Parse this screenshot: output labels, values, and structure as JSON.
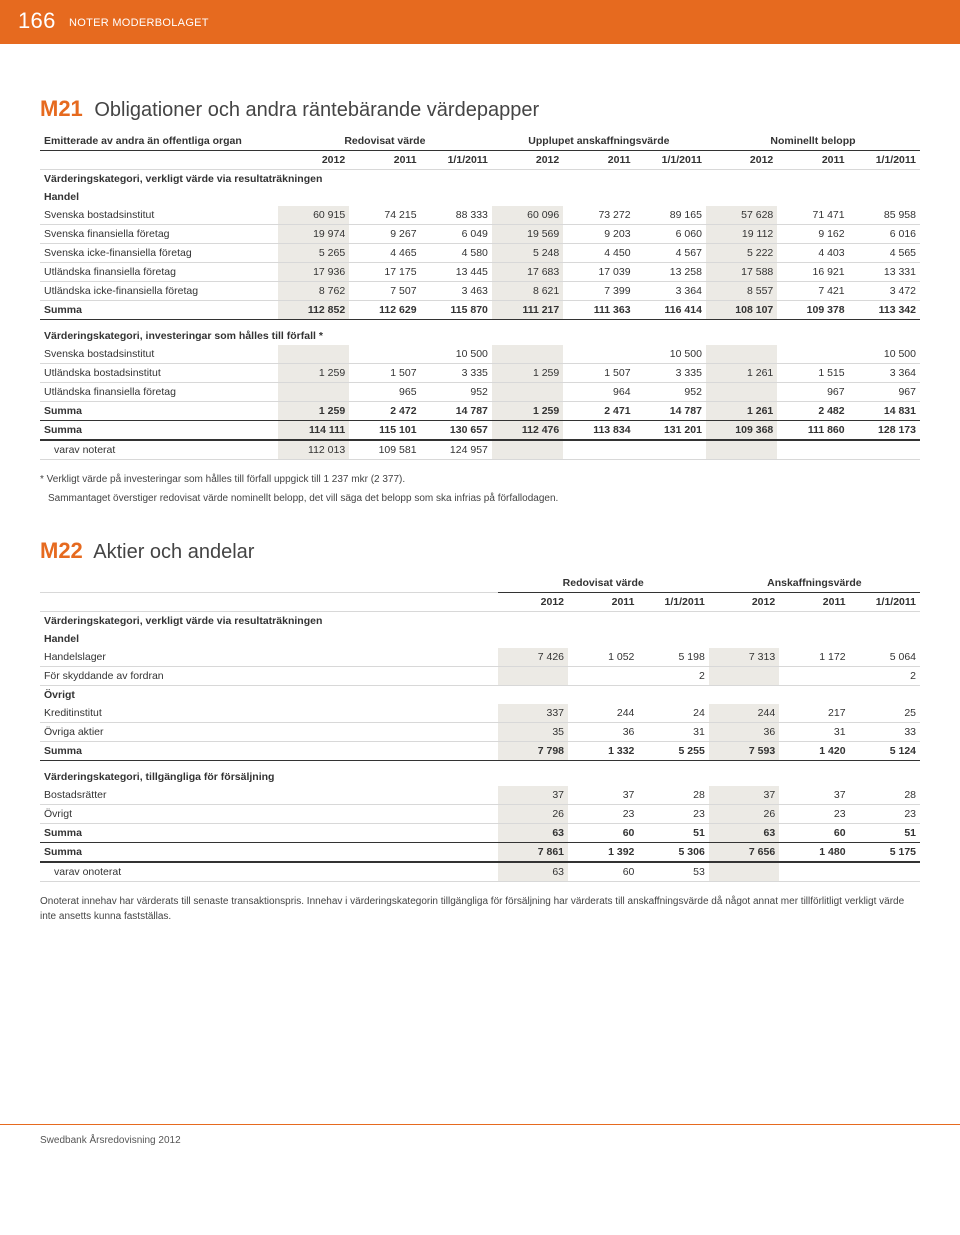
{
  "header": {
    "page_num": "166",
    "section": "NOTER MODERBOLAGET"
  },
  "m21": {
    "code": "M21",
    "title": "Obligationer och andra räntebärande värdepapper",
    "top_label": "Emitterade av andra än offentliga organ",
    "col_groups": [
      "Redovisat värde",
      "Upplupet anskaffningsvärde",
      "Nominellt belopp"
    ],
    "years": [
      "2012",
      "2011",
      "1/1/2011",
      "2012",
      "2011",
      "1/1/2011",
      "2012",
      "2011",
      "1/1/2011"
    ],
    "grp1_title": "Värderingskategori, verkligt värde via resultat­räkningen",
    "grp1_sub": "Handel",
    "rows1": [
      {
        "l": "Svenska bostadsinstitut",
        "v": [
          "60 915",
          "74 215",
          "88 333",
          "60 096",
          "73 272",
          "89 165",
          "57 628",
          "71 471",
          "85 958"
        ]
      },
      {
        "l": "Svenska finansiella företag",
        "v": [
          "19 974",
          "9 267",
          "6 049",
          "19 569",
          "9 203",
          "6 060",
          "19 112",
          "9 162",
          "6 016"
        ]
      },
      {
        "l": "Svenska icke-finansiella företag",
        "v": [
          "5 265",
          "4 465",
          "4 580",
          "5 248",
          "4 450",
          "4 567",
          "5 222",
          "4 403",
          "4 565"
        ]
      },
      {
        "l": "Utländska finansiella företag",
        "v": [
          "17 936",
          "17 175",
          "13 445",
          "17 683",
          "17 039",
          "13 258",
          "17 588",
          "16 921",
          "13 331"
        ]
      },
      {
        "l": "Utländska icke-finansiella företag",
        "v": [
          "8 762",
          "7 507",
          "3 463",
          "8 621",
          "7 399",
          "3 364",
          "8 557",
          "7 421",
          "3 472"
        ]
      }
    ],
    "sum1": {
      "l": "Summa",
      "v": [
        "112 852",
        "112 629",
        "115 870",
        "111 217",
        "111 363",
        "116 414",
        "108 107",
        "109 378",
        "113 342"
      ]
    },
    "grp2_title": "Värderingskategori, investeringar som hålles till förfall *",
    "rows2": [
      {
        "l": "Svenska bostadsinstitut",
        "v": [
          "",
          "",
          "10 500",
          "",
          "",
          "10 500",
          "",
          "",
          "10 500"
        ]
      },
      {
        "l": "Utländska bostadsinstitut",
        "v": [
          "1 259",
          "1 507",
          "3 335",
          "1 259",
          "1 507",
          "3 335",
          "1 261",
          "1 515",
          "3 364"
        ]
      },
      {
        "l": "Utländska finansiella företag",
        "v": [
          "",
          "965",
          "952",
          "",
          "964",
          "952",
          "",
          "967",
          "967"
        ]
      }
    ],
    "sum2": {
      "l": "Summa",
      "v": [
        "1 259",
        "2 472",
        "14 787",
        "1 259",
        "2 471",
        "14 787",
        "1 261",
        "2 482",
        "14 831"
      ]
    },
    "sum3": {
      "l": "Summa",
      "v": [
        "114 111",
        "115 101",
        "130 657",
        "112 476",
        "113 834",
        "131 201",
        "109 368",
        "111 860",
        "128 173"
      ]
    },
    "varav": {
      "l": "varav noterat",
      "v": [
        "112 013",
        "109 581",
        "124 957",
        "",
        "",
        "",
        "",
        "",
        ""
      ]
    },
    "note1": "* Verkligt värde på investeringar som hålles till förfall uppgick till 1 237 mkr (2 377).",
    "note2": "Sammantaget överstiger redovisat värde nominellt belopp, det vill säga det belopp som ska infrias på förfallodagen."
  },
  "m22": {
    "code": "M22",
    "title": "Aktier och andelar",
    "col_groups": [
      "Redovisat värde",
      "Anskaffningsvärde"
    ],
    "years": [
      "2012",
      "2011",
      "1/1/2011",
      "2012",
      "2011",
      "1/1/2011"
    ],
    "grp1_title": "Värderingskategori, verkligt värde via resultaträkningen",
    "grp1_sub": "Handel",
    "rows1": [
      {
        "l": "Handelslager",
        "v": [
          "7 426",
          "1 052",
          "5 198",
          "7 313",
          "1 172",
          "5 064"
        ]
      },
      {
        "l": "För skyddande av fordran",
        "v": [
          "",
          "",
          "2",
          "",
          "",
          "2"
        ]
      }
    ],
    "grp1b": "Övrigt",
    "rows1b": [
      {
        "l": "Kreditinstitut",
        "v": [
          "337",
          "244",
          "24",
          "244",
          "217",
          "25"
        ]
      },
      {
        "l": "Övriga aktier",
        "v": [
          "35",
          "36",
          "31",
          "36",
          "31",
          "33"
        ]
      }
    ],
    "sum1": {
      "l": "Summa",
      "v": [
        "7 798",
        "1 332",
        "5 255",
        "7 593",
        "1 420",
        "5 124"
      ]
    },
    "grp2_title": "Värderingskategori, tillgängliga för försäljning",
    "rows2": [
      {
        "l": "Bostadsrätter",
        "v": [
          "37",
          "37",
          "28",
          "37",
          "37",
          "28"
        ]
      },
      {
        "l": "Övrigt",
        "v": [
          "26",
          "23",
          "23",
          "26",
          "23",
          "23"
        ]
      }
    ],
    "sum2": {
      "l": "Summa",
      "v": [
        "63",
        "60",
        "51",
        "63",
        "60",
        "51"
      ]
    },
    "sum3": {
      "l": "Summa",
      "v": [
        "7 861",
        "1 392",
        "5 306",
        "7 656",
        "1 480",
        "5 175"
      ]
    },
    "varav": {
      "l": "varav onoterat",
      "v": [
        "63",
        "60",
        "53",
        "",
        "",
        ""
      ]
    },
    "note": "Onoterat innehav har värderats till senaste transaktionspris. Innehav i värderingskategorin tillgängliga för försäljning har värderats till anskaffningsvärde då något annat mer tillförlitligt verkligt värde inte ansetts kunna fastställas."
  },
  "footer": "Swedbank Årsredovisning 2012"
}
